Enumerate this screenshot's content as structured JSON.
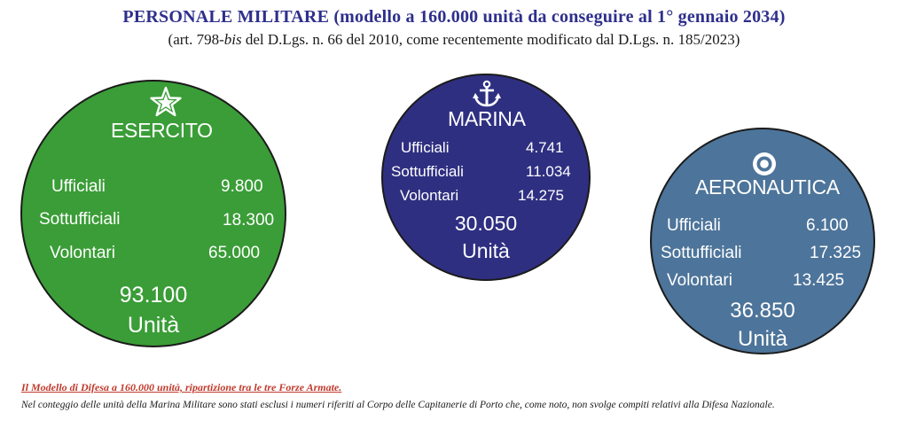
{
  "header": {
    "title": "PERSONALE MILITARE (modello a 160.000 unità da conseguire al 1° gennaio 2034)",
    "subtitle_pre": "(art. 798-",
    "subtitle_em": "bis",
    "subtitle_post": " del D.Lgs. n. 66 del 2010, come recentemente modificato dal D.Lgs. n. 185/2023)"
  },
  "forces": {
    "esercito": {
      "name": "ESERCITO",
      "icon": "star-icon",
      "color": "#3a9d37",
      "rows": [
        {
          "label": "Ufficiali",
          "value": "9.800"
        },
        {
          "label": "Sottufficiali",
          "value": "18.300"
        },
        {
          "label": "Volontari",
          "value": "65.000"
        }
      ],
      "total": "93.100",
      "unit": "Unità"
    },
    "marina": {
      "name": "MARINA",
      "icon": "anchor-icon",
      "color": "#2f2f82",
      "rows": [
        {
          "label": "Ufficiali",
          "value": "4.741"
        },
        {
          "label": "Sottufficiali",
          "value": "11.034"
        },
        {
          "label": "Volontari",
          "value": "14.275"
        }
      ],
      "total": "30.050",
      "unit": "Unità"
    },
    "aeronautica": {
      "name": "AERONAUTICA",
      "icon": "roundel-icon",
      "color": "#4d749a",
      "rows": [
        {
          "label": "Ufficiali",
          "value": "6.100"
        },
        {
          "label": "Sottufficiali",
          "value": "17.325"
        },
        {
          "label": "Volontari",
          "value": "13.425"
        }
      ],
      "total": "36.850",
      "unit": "Unità"
    }
  },
  "footer": {
    "caption": "Il Modello di Difesa a 160.000 unità, ripartizione tra le tre Forze Armate.",
    "note": "Nel conteggio delle unità della Marina Militare sono stati esclusi i numeri riferiti al Corpo delle Capitanerie di Porto che, come noto, non svolge compiti relativi alla Difesa Nazionale."
  }
}
